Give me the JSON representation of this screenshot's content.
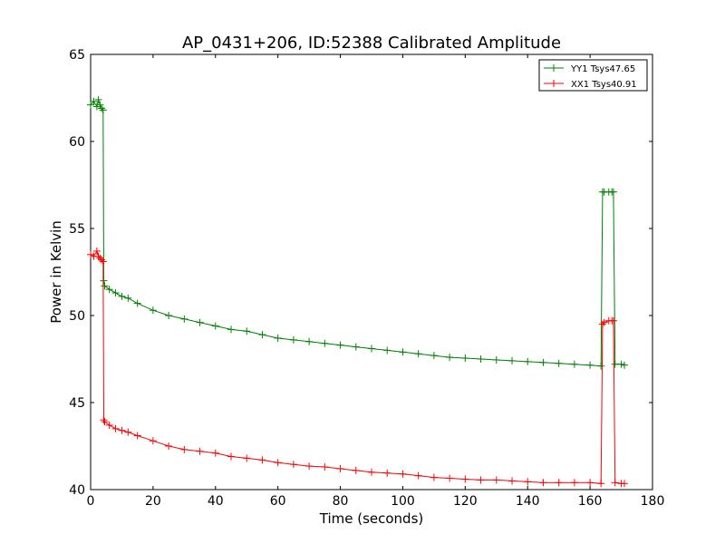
{
  "chart_data": {
    "type": "line",
    "title": "AP_0431+206, ID:52388 Calibrated Amplitude",
    "xlabel": "Time (seconds)",
    "ylabel": "Power in Kelvin",
    "xlim": [
      0,
      180
    ],
    "ylim": [
      40,
      65
    ],
    "xticks": [
      0,
      20,
      40,
      60,
      80,
      100,
      120,
      140,
      160,
      180
    ],
    "yticks": [
      40,
      45,
      50,
      55,
      60,
      65
    ],
    "grid": false,
    "legend_position": "top-right",
    "marker": "+",
    "series": [
      {
        "name": "YY1 Tsys47.65",
        "color": "#008000",
        "x": [
          0,
          1,
          2,
          2.5,
          3,
          3.5,
          4,
          4.2,
          4.5,
          6,
          8,
          10,
          12,
          15,
          20,
          25,
          30,
          35,
          40,
          45,
          50,
          55,
          60,
          65,
          70,
          75,
          80,
          85,
          90,
          95,
          100,
          105,
          110,
          115,
          120,
          125,
          130,
          135,
          140,
          145,
          150,
          155,
          160,
          163.5,
          164,
          164.5,
          166,
          167,
          167.5,
          168,
          170,
          171
        ],
        "y": [
          62.1,
          62.3,
          62.0,
          62.4,
          62.1,
          61.9,
          61.8,
          52.0,
          51.7,
          51.5,
          51.3,
          51.1,
          51.0,
          50.7,
          50.3,
          50.0,
          49.8,
          49.6,
          49.4,
          49.2,
          49.1,
          48.9,
          48.7,
          48.6,
          48.5,
          48.4,
          48.3,
          48.2,
          48.1,
          48.0,
          47.9,
          47.8,
          47.7,
          47.6,
          47.55,
          47.5,
          47.45,
          47.4,
          47.35,
          47.3,
          47.25,
          47.2,
          47.15,
          47.1,
          57.1,
          57.1,
          57.1,
          57.1,
          57.1,
          47.2,
          47.2,
          47.15
        ]
      },
      {
        "name": "XX1 Tsys40.91",
        "color": "#ff0000",
        "x": [
          0,
          1,
          2,
          2.5,
          3,
          3.5,
          4,
          4.2,
          4.5,
          6,
          8,
          10,
          12,
          15,
          20,
          25,
          30,
          35,
          40,
          45,
          50,
          55,
          60,
          65,
          70,
          75,
          80,
          85,
          90,
          95,
          100,
          105,
          110,
          115,
          120,
          125,
          130,
          135,
          140,
          145,
          150,
          155,
          160,
          163.5,
          164,
          164.5,
          166,
          167,
          167.5,
          168,
          170,
          171
        ],
        "y": [
          53.5,
          53.4,
          53.7,
          53.4,
          53.3,
          53.2,
          53.1,
          44.0,
          43.9,
          43.7,
          43.5,
          43.4,
          43.3,
          43.1,
          42.8,
          42.5,
          42.3,
          42.2,
          42.1,
          41.9,
          41.8,
          41.7,
          41.55,
          41.45,
          41.35,
          41.3,
          41.2,
          41.1,
          41.0,
          40.95,
          40.9,
          40.8,
          40.7,
          40.65,
          40.6,
          40.55,
          40.55,
          40.5,
          40.45,
          40.4,
          40.4,
          40.4,
          40.4,
          40.35,
          49.5,
          49.6,
          49.7,
          49.7,
          49.7,
          40.4,
          40.35,
          40.35
        ]
      }
    ]
  }
}
